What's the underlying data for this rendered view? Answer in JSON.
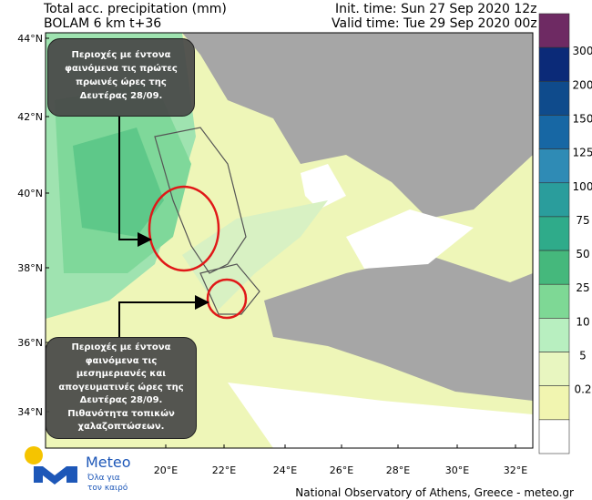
{
  "header": {
    "title": "Total acc. precipitation (mm)",
    "model": "BOLAM 6 km t+36",
    "init_time": "Init. time: Sun 27 Sep 2020 12z",
    "valid_time": "Valid time: Tue 29 Sep 2020 00z"
  },
  "map": {
    "lat_ticks": [
      "44°N",
      "42°N",
      "40°N",
      "38°N",
      "36°N",
      "34°N"
    ],
    "lon_ticks": [
      "20°E",
      "22°E",
      "24°E",
      "26°E",
      "28°E",
      "30°E",
      "32°E"
    ]
  },
  "colorbar": {
    "levels": [
      300,
      200,
      150,
      125,
      100,
      75,
      50,
      25,
      10,
      5,
      0.2
    ],
    "colors": [
      "#6e2a63",
      "#0b2a78",
      "#0f4b8c",
      "#1767a4",
      "#2f8bb5",
      "#2a9d9c",
      "#2fab8a",
      "#45b87c",
      "#7ed895",
      "#b8efc0",
      "#e8f6c0",
      "#f1f5b0",
      "#ffffff"
    ]
  },
  "annotations": [
    {
      "lines": [
        "Περιοχές με έντονα",
        "φαινόμενα  τις πρώτες",
        "πρωινές ώρες της",
        "Δευτέρας 28/09."
      ]
    },
    {
      "lines": [
        "Περιοχές με έντονα",
        "φαινόμενα  τις",
        "μεσημεριανές και",
        "απογευματινές ώρες της",
        "Δευτέρας 28/09.",
        "Πιθανότητα τοπικών",
        "χαλαζοπτώσεων."
      ]
    }
  ],
  "logo": {
    "name": "Meteo",
    "tagline": [
      "Όλα για",
      "τον καιρό"
    ]
  },
  "footer": "National Observatory of Athens, Greece - meteo.gr"
}
